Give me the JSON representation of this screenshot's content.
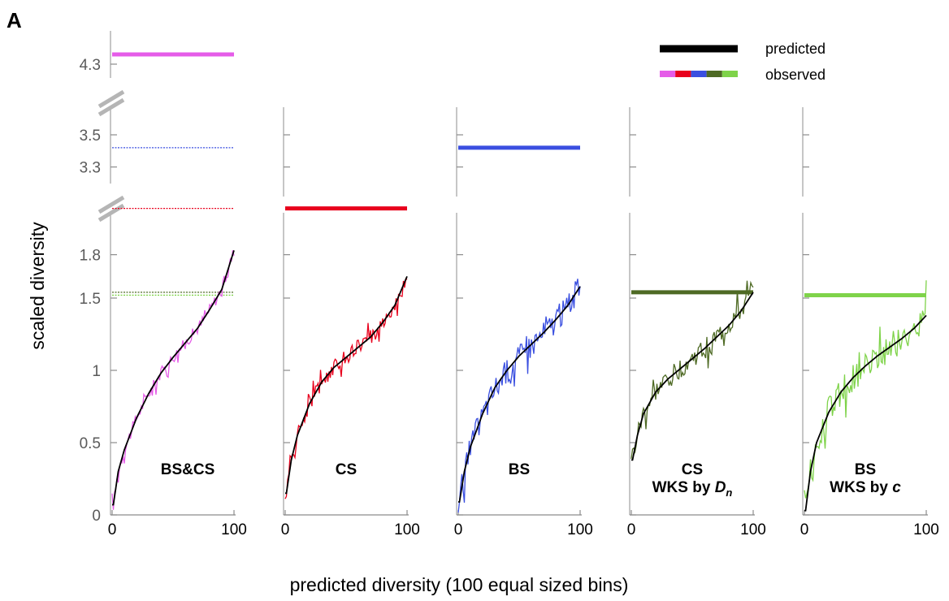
{
  "figure_label": "A",
  "legend": {
    "predicted": "predicted",
    "observed": "observed"
  },
  "colors": {
    "predicted": "#000000",
    "observed_swatch": [
      "#e55ce8",
      "#e8001c",
      "#3a4fe0",
      "#4e6a24",
      "#7fd34a"
    ]
  },
  "chart_data": {
    "type": "line",
    "ylabel": "scaled diversity",
    "xlabel": "predicted diversity (100 equal sized bins)",
    "x_ticks": [
      "0",
      "100"
    ],
    "y_ticks_low": [
      "0",
      "0.5",
      "1",
      "1.5",
      "1.8"
    ],
    "y_ticks_mid": [
      "3.3",
      "3.5"
    ],
    "y_ticks_high": [
      "4.3"
    ],
    "axis_breaks": true,
    "xlim": [
      0,
      100
    ],
    "panels": [
      {
        "label_lines": [
          "BS&CS"
        ],
        "color": "#e55ce8",
        "observed_level": 4.36,
        "predicted_curve": [
          [
            1,
            0.07
          ],
          [
            5,
            0.3
          ],
          [
            10,
            0.45
          ],
          [
            20,
            0.67
          ],
          [
            30,
            0.84
          ],
          [
            40,
            0.98
          ],
          [
            50,
            1.09
          ],
          [
            60,
            1.19
          ],
          [
            70,
            1.29
          ],
          [
            80,
            1.42
          ],
          [
            90,
            1.56
          ],
          [
            100,
            1.83
          ]
        ],
        "observed_noise": 0.04,
        "reference_levels": [
          {
            "y": 3.42,
            "color": "#3a4fe0"
          },
          {
            "y": 2.12,
            "color": "#e8001c"
          },
          {
            "y": 1.54,
            "color": "#4e6a24"
          },
          {
            "y": 1.52,
            "color": "#7fd34a"
          }
        ]
      },
      {
        "label_lines": [
          "CS"
        ],
        "color": "#e8001c",
        "observed_level": 2.12,
        "predicted_curve": [
          [
            1,
            0.15
          ],
          [
            5,
            0.38
          ],
          [
            10,
            0.55
          ],
          [
            20,
            0.77
          ],
          [
            30,
            0.92
          ],
          [
            40,
            1.02
          ],
          [
            50,
            1.09
          ],
          [
            60,
            1.16
          ],
          [
            70,
            1.23
          ],
          [
            80,
            1.33
          ],
          [
            90,
            1.45
          ],
          [
            100,
            1.65
          ]
        ],
        "observed_noise": 0.05,
        "reference_levels": []
      },
      {
        "label_lines": [
          "BS"
        ],
        "color": "#3a4fe0",
        "observed_level": 3.42,
        "predicted_curve": [
          [
            1,
            0.09
          ],
          [
            5,
            0.3
          ],
          [
            10,
            0.47
          ],
          [
            20,
            0.7
          ],
          [
            30,
            0.88
          ],
          [
            40,
            1.0
          ],
          [
            50,
            1.1
          ],
          [
            60,
            1.18
          ],
          [
            70,
            1.26
          ],
          [
            80,
            1.35
          ],
          [
            90,
            1.45
          ],
          [
            100,
            1.58
          ]
        ],
        "observed_noise": 0.09,
        "reference_levels": []
      },
      {
        "label_lines": [
          "CS",
          "WKS by D_n"
        ],
        "color": "#4e6a24",
        "observed_level": 1.54,
        "predicted_curve": [
          [
            1,
            0.38
          ],
          [
            5,
            0.55
          ],
          [
            10,
            0.7
          ],
          [
            20,
            0.85
          ],
          [
            30,
            0.94
          ],
          [
            40,
            1.01
          ],
          [
            50,
            1.08
          ],
          [
            60,
            1.15
          ],
          [
            70,
            1.23
          ],
          [
            80,
            1.31
          ],
          [
            90,
            1.41
          ],
          [
            100,
            1.54
          ]
        ],
        "observed_noise": 0.07,
        "reference_levels": []
      },
      {
        "label_lines": [
          "BS",
          "WKS by c"
        ],
        "color": "#7fd34a",
        "observed_level": 1.52,
        "predicted_curve": [
          [
            1,
            0.03
          ],
          [
            5,
            0.3
          ],
          [
            10,
            0.5
          ],
          [
            20,
            0.71
          ],
          [
            30,
            0.85
          ],
          [
            40,
            0.95
          ],
          [
            50,
            1.03
          ],
          [
            60,
            1.1
          ],
          [
            70,
            1.16
          ],
          [
            80,
            1.22
          ],
          [
            90,
            1.29
          ],
          [
            100,
            1.38
          ]
        ],
        "observed_noise": 0.1,
        "reference_levels": []
      }
    ]
  }
}
